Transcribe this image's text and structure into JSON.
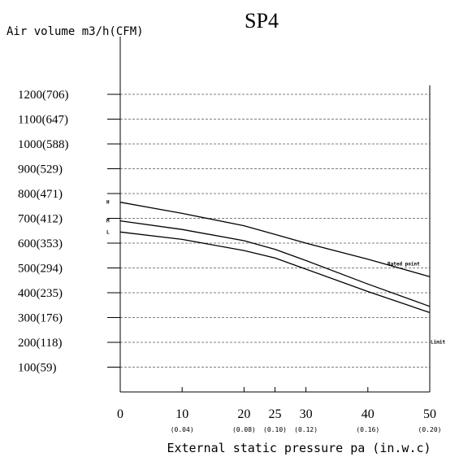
{
  "chart_data": {
    "type": "line",
    "title": "SP4",
    "ylabel": "Air volume m3/h(CFM)",
    "xlabel": "External static pressure pa (in.w.c)",
    "x_ticks": [
      {
        "value": 0,
        "label": "0",
        "sublabel": ""
      },
      {
        "value": 10,
        "label": "10",
        "sublabel": "(0.04)"
      },
      {
        "value": 20,
        "label": "20",
        "sublabel": "(0.08)"
      },
      {
        "value": 25,
        "label": "25",
        "sublabel": "(0.10)"
      },
      {
        "value": 30,
        "label": "30",
        "sublabel": "(0.12)"
      },
      {
        "value": 40,
        "label": "40",
        "sublabel": "(0.16)"
      },
      {
        "value": 50,
        "label": "50",
        "sublabel": "(0.20)"
      }
    ],
    "y_ticks": [
      {
        "value": 100,
        "label": "100(59)"
      },
      {
        "value": 200,
        "label": "200(118)"
      },
      {
        "value": 300,
        "label": "300(176)"
      },
      {
        "value": 400,
        "label": "400(235)"
      },
      {
        "value": 500,
        "label": "500(294)"
      },
      {
        "value": 600,
        "label": "600(353)"
      },
      {
        "value": 700,
        "label": "700(412)"
      },
      {
        "value": 800,
        "label": "800(471)"
      },
      {
        "value": 900,
        "label": "900(529)"
      },
      {
        "value": 1000,
        "label": "1000(588)"
      },
      {
        "value": 1100,
        "label": "1100(647)"
      },
      {
        "value": 1200,
        "label": "1200(706)"
      }
    ],
    "xlim": [
      0,
      50
    ],
    "ylim": [
      0,
      1200
    ],
    "grid": true,
    "series": [
      {
        "name": "H",
        "x": [
          0,
          10,
          20,
          25,
          30,
          40,
          50
        ],
        "y": [
          765,
          720,
          670,
          635,
          600,
          535,
          465
        ]
      },
      {
        "name": "M",
        "x": [
          0,
          10,
          20,
          25,
          30,
          40,
          50
        ],
        "y": [
          690,
          655,
          610,
          575,
          530,
          435,
          345
        ]
      },
      {
        "name": "L",
        "x": [
          0,
          10,
          20,
          25,
          30,
          40,
          50
        ],
        "y": [
          645,
          615,
          570,
          540,
          495,
          405,
          320
        ]
      }
    ],
    "annotations": [
      {
        "text": "Rated point",
        "x": 50,
        "y": 510
      },
      {
        "text": "Limit",
        "x": 50,
        "y": 195
      }
    ]
  }
}
